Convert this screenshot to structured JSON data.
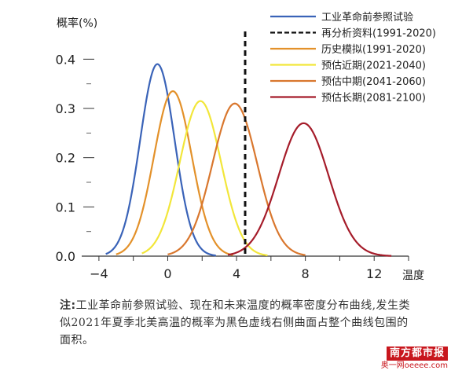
{
  "chart_data": {
    "type": "line",
    "ylabel": "概率(%)",
    "xlabel": "温度",
    "xlim": [
      -5,
      14
    ],
    "ylim": [
      0,
      0.45
    ],
    "x_ticks": [
      -4,
      0,
      4,
      8,
      12
    ],
    "x_tick_labels": [
      "−4",
      "0",
      "4",
      "8",
      "12"
    ],
    "y_ticks": [
      0.0,
      0.1,
      0.2,
      0.3,
      0.4
    ],
    "y_tick_labels": [
      "0.0",
      "0.1",
      "0.2",
      "0.3",
      "0.4"
    ],
    "grid": false,
    "legend_position": "top-right",
    "threshold_line": {
      "name": "再分析资料(1991-2020)",
      "x": 4.5,
      "color": "#111111",
      "style": "dashed"
    },
    "series": [
      {
        "name": "工业革命前参照试验",
        "color": "#3a63b8",
        "mean": -0.6,
        "sd": 1.0,
        "peak": 0.39,
        "x_range": [
          -3.6,
          2.8
        ]
      },
      {
        "name": "历史模拟(1991-2020)",
        "color": "#e3912a",
        "mean": 0.3,
        "sd": 1.1,
        "peak": 0.335,
        "x_range": [
          -3.0,
          3.8
        ]
      },
      {
        "name": "预估近期(2021-2040)",
        "color": "#f2e63a",
        "mean": 1.9,
        "sd": 1.2,
        "peak": 0.315,
        "x_range": [
          -1.5,
          5.8
        ]
      },
      {
        "name": "预估中期(2041-2060)",
        "color": "#d9772e",
        "mean": 3.9,
        "sd": 1.3,
        "peak": 0.31,
        "x_range": [
          0.0,
          8.0
        ]
      },
      {
        "name": "预估长期(2081-2100)",
        "color": "#a51c2a",
        "mean": 7.9,
        "sd": 1.45,
        "peak": 0.27,
        "x_range": [
          3.5,
          13.0
        ]
      }
    ]
  },
  "note": {
    "label": "注:",
    "text": "工业革命前参照试验、现在和未来温度的概率密度分布曲线,发生类似2021年夏季北美高温的概率为黑色虚线右侧曲面占整个曲线包围的面积。"
  },
  "watermark": {
    "title": "南方都市报",
    "subtitle": "奥一网oeeee.com"
  }
}
